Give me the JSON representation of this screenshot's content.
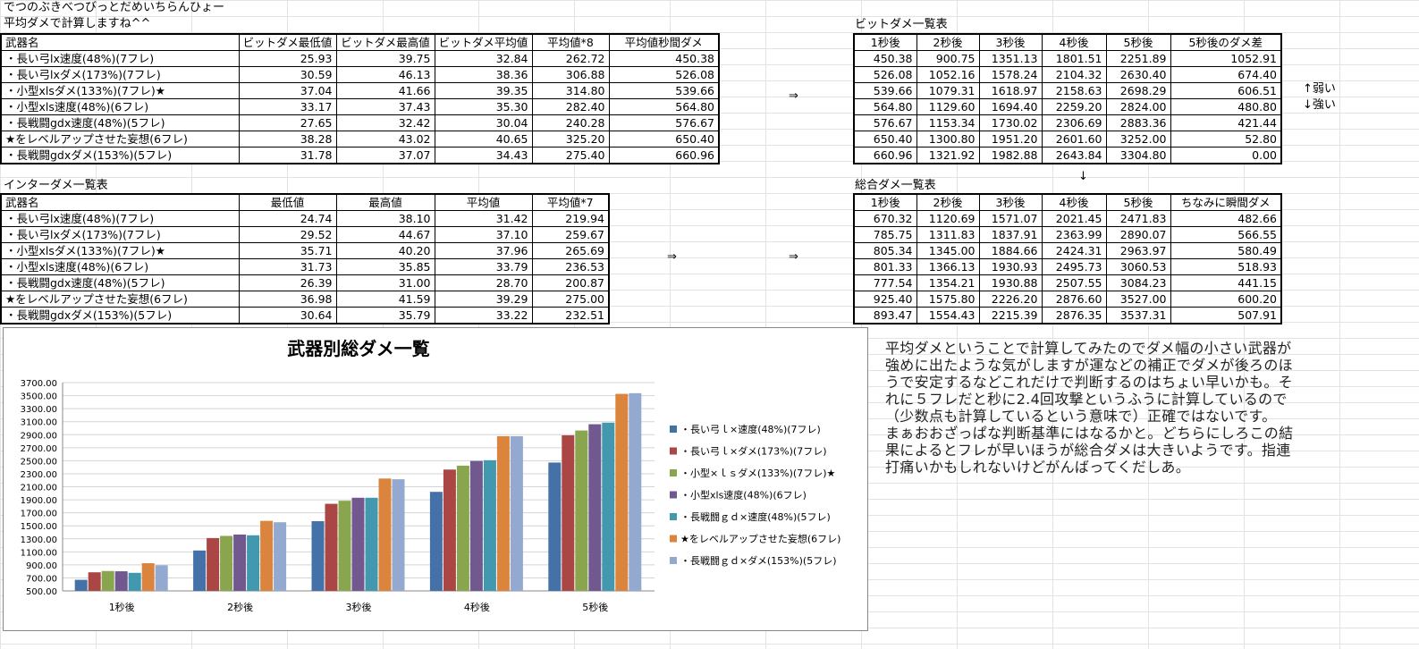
{
  "header": {
    "line1": "でつのぶきべつびっとだめいちらんひょー",
    "line2": "平均ダメで計算しますね^^"
  },
  "bit_table": {
    "headers": [
      "武器名",
      "ビットダメ最低値",
      "ビットダメ最高値",
      "ビットダメ平均値",
      "平均値*8",
      "平均値秒間ダメ"
    ],
    "rows": [
      [
        "・長い弓lx速度(48%)(7フレ)",
        "25.93",
        "39.75",
        "32.84",
        "262.72",
        "450.38"
      ],
      [
        "・長い弓lxダメ(173%)(7フレ)",
        "30.59",
        "46.13",
        "38.36",
        "306.88",
        "526.08"
      ],
      [
        "・小型xlsダメ(133%)(7フレ)★",
        "37.04",
        "41.66",
        "39.35",
        "314.80",
        "539.66"
      ],
      [
        "・小型xls速度(48%)(6フレ)",
        "33.17",
        "37.43",
        "35.30",
        "282.40",
        "564.80"
      ],
      [
        "・長戦闘gdx速度(48%)(5フレ)",
        "27.65",
        "32.42",
        "30.04",
        "240.28",
        "576.67"
      ],
      [
        "★をレベルアップさせた妄想(6フレ)",
        "38.28",
        "43.02",
        "40.65",
        "325.20",
        "650.40"
      ],
      [
        "・長戦闘gdxダメ(153%)(5フレ)",
        "31.78",
        "37.07",
        "34.43",
        "275.40",
        "660.96"
      ]
    ]
  },
  "inter_title": "インターダメ一覧表",
  "inter_table": {
    "headers": [
      "武器名",
      "最低値",
      "最高値",
      "平均値",
      "平均値*7"
    ],
    "rows": [
      [
        "・長い弓lx速度(48%)(7フレ)",
        "24.74",
        "38.10",
        "31.42",
        "219.94"
      ],
      [
        "・長い弓lxダメ(173%)(7フレ)",
        "29.52",
        "44.67",
        "37.10",
        "259.67"
      ],
      [
        "・小型xlsダメ(133%)(7フレ)★",
        "35.71",
        "40.20",
        "37.96",
        "265.69"
      ],
      [
        "・小型xls速度(48%)(6フレ)",
        "31.73",
        "35.85",
        "33.79",
        "236.53"
      ],
      [
        "・長戦闘gdx速度(48%)(5フレ)",
        "26.39",
        "31.00",
        "28.70",
        "200.87"
      ],
      [
        "★をレベルアップさせた妄想(6フレ)",
        "36.98",
        "41.59",
        "39.29",
        "275.00"
      ],
      [
        "・長戦闘gdxダメ(153%)(5フレ)",
        "30.64",
        "35.79",
        "33.22",
        "232.51"
      ]
    ]
  },
  "bit_list_title": "ビットダメ一覧表",
  "bit_list": {
    "headers": [
      "1秒後",
      "2秒後",
      "3秒後",
      "4秒後",
      "5秒後",
      "5秒後のダメ差"
    ],
    "rows": [
      [
        "450.38",
        "900.75",
        "1351.13",
        "1801.51",
        "2251.89",
        "1052.91"
      ],
      [
        "526.08",
        "1052.16",
        "1578.24",
        "2104.32",
        "2630.40",
        "674.40"
      ],
      [
        "539.66",
        "1079.31",
        "1618.97",
        "2158.63",
        "2698.29",
        "606.51"
      ],
      [
        "564.80",
        "1129.60",
        "1694.40",
        "2259.20",
        "2824.00",
        "480.80"
      ],
      [
        "576.67",
        "1153.34",
        "1730.02",
        "2306.69",
        "2883.36",
        "421.44"
      ],
      [
        "650.40",
        "1300.80",
        "1951.20",
        "2601.60",
        "3252.00",
        "52.80"
      ],
      [
        "660.96",
        "1321.92",
        "1982.88",
        "2643.84",
        "3304.80",
        "0.00"
      ]
    ]
  },
  "side_notes": {
    "weak": "↑弱い",
    "strong": "↓強い"
  },
  "total_title": "総合ダメ一覧表",
  "total_list": {
    "headers": [
      "1秒後",
      "2秒後",
      "3秒後",
      "4秒後",
      "5秒後",
      "ちなみに瞬間ダメ"
    ],
    "rows": [
      [
        "670.32",
        "1120.69",
        "1571.07",
        "2021.45",
        "2471.83",
        "482.66"
      ],
      [
        "785.75",
        "1311.83",
        "1837.91",
        "2363.99",
        "2890.07",
        "566.55"
      ],
      [
        "805.34",
        "1345.00",
        "1884.66",
        "2424.31",
        "2963.97",
        "580.49"
      ],
      [
        "801.33",
        "1366.13",
        "1930.93",
        "2495.73",
        "3060.53",
        "518.93"
      ],
      [
        "777.54",
        "1354.21",
        "1930.88",
        "2507.55",
        "3084.23",
        "441.15"
      ],
      [
        "925.40",
        "1575.80",
        "2226.20",
        "2876.60",
        "3527.00",
        "600.20"
      ],
      [
        "893.47",
        "1554.43",
        "2215.39",
        "2876.35",
        "3537.31",
        "507.91"
      ]
    ]
  },
  "arrows": {
    "right": "⇒",
    "down": "↓"
  },
  "comment_lines": [
    "平均ダメということで計算してみたのでダメ幅の小さい武器が",
    "強めに出たような気がしますが運などの補正でダメが後ろのほ",
    "うで安定するなどこれだけで判断するのはちょい早いかも。そ",
    "れに５フレだと秒に2.4回攻撃というふうに計算しているので",
    "（少数点も計算しているという意味で）正確ではないです。",
    "まぁおおざっぱな判断基準にはなるかと。どちらにしろこの結",
    "果によるとフレが早いほうが総合ダメは大きいようです。指連",
    "打痛いかもしれないけどがんばってくだしあ。"
  ],
  "chart_data": {
    "type": "bar",
    "title": "武器別総ダメ一覧",
    "categories": [
      "1秒後",
      "2秒後",
      "3秒後",
      "4秒後",
      "5秒後"
    ],
    "ylim": [
      500,
      3700
    ],
    "ytick_step": 200,
    "grid": true,
    "legend_position": "right",
    "series": [
      {
        "name": "・長い弓ｌ×速度(48%)(7フレ)",
        "color": "#4472A8",
        "values": [
          670.32,
          1120.69,
          1571.07,
          2021.45,
          2471.83
        ]
      },
      {
        "name": "・長い弓ｌ×ダメ(173%)(7フレ)",
        "color": "#AA4643",
        "values": [
          785.75,
          1311.83,
          1837.91,
          2363.99,
          2890.07
        ]
      },
      {
        "name": "・小型×ｌｓダメ(133%)(7フレ)★",
        "color": "#89A54E",
        "values": [
          805.34,
          1345.0,
          1884.66,
          2424.31,
          2963.97
        ]
      },
      {
        "name": "・小型xls速度(48%)(6フレ)",
        "color": "#71588F",
        "values": [
          801.33,
          1366.13,
          1930.93,
          2495.73,
          3060.53
        ]
      },
      {
        "name": "・長戦闘ｇｄ×速度(48%)(5フレ)",
        "color": "#4198AF",
        "values": [
          777.54,
          1354.21,
          1930.88,
          2507.55,
          3084.23
        ]
      },
      {
        "name": "★をレベルアップさせた妄想(6フレ)",
        "color": "#DB843D",
        "values": [
          925.4,
          1575.8,
          2226.2,
          2876.6,
          3527.0
        ]
      },
      {
        "name": "・長戦闘ｇｄ×ダメ(153%)(5フレ)",
        "color": "#93A9CF",
        "values": [
          893.47,
          1554.43,
          2215.39,
          2876.35,
          3537.31
        ]
      }
    ]
  }
}
